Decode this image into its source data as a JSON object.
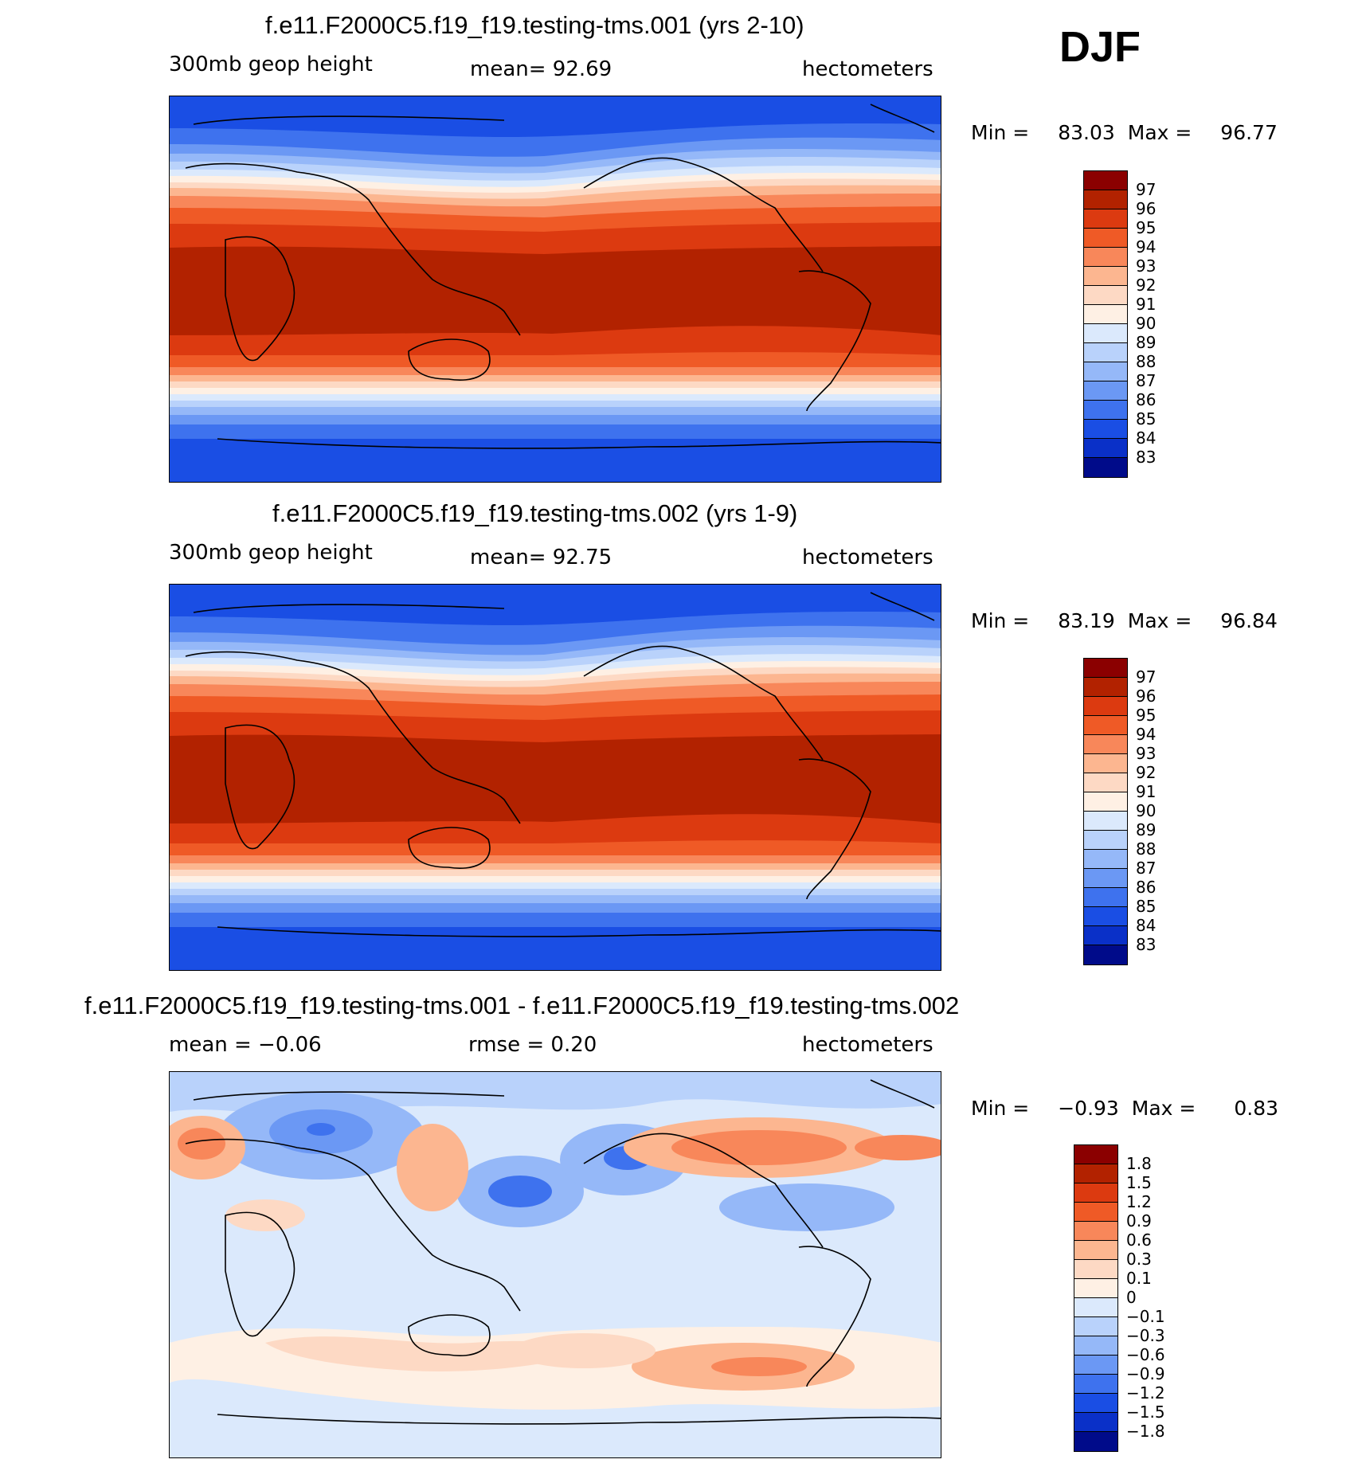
{
  "season": "DJF",
  "panels": [
    {
      "title": "f.e11.F2000C5.f19_f19.testing-tms.001 (yrs 2-10)",
      "left_label": "300mb  geop  height",
      "center_label": "mean=   92.69",
      "right_label": "hectometers",
      "min_label": "Min =",
      "min_value": "83.03",
      "max_label": "Max =",
      "max_value": "96.77",
      "legend": {
        "labels": [
          "97",
          "96",
          "95",
          "94",
          "93",
          "92",
          "91",
          "90",
          "89",
          "88",
          "87",
          "86",
          "85",
          "84",
          "83"
        ],
        "colors": [
          "#8b0000",
          "#b22200",
          "#dc3a10",
          "#ef5a26",
          "#f8875a",
          "#fcb690",
          "#fdd9c4",
          "#fef0e4",
          "#dbe9fc",
          "#b9d2fb",
          "#95b8f8",
          "#6b98f4",
          "#3e72ee",
          "#1a4ee4",
          "#0a30c8",
          "#000b8a"
        ]
      }
    },
    {
      "title": "f.e11.F2000C5.f19_f19.testing-tms.002 (yrs 1-9)",
      "left_label": "300mb  geop  height",
      "center_label": "mean=   92.75",
      "right_label": "hectometers",
      "min_label": "Min =",
      "min_value": "83.19",
      "max_label": "Max =",
      "max_value": "96.84",
      "legend": {
        "labels": [
          "97",
          "96",
          "95",
          "94",
          "93",
          "92",
          "91",
          "90",
          "89",
          "88",
          "87",
          "86",
          "85",
          "84",
          "83"
        ],
        "colors": [
          "#8b0000",
          "#b22200",
          "#dc3a10",
          "#ef5a26",
          "#f8875a",
          "#fcb690",
          "#fdd9c4",
          "#fef0e4",
          "#dbe9fc",
          "#b9d2fb",
          "#95b8f8",
          "#6b98f4",
          "#3e72ee",
          "#1a4ee4",
          "#0a30c8",
          "#000b8a"
        ]
      }
    },
    {
      "title": "f.e11.F2000C5.f19_f19.testing-tms.001 - f.e11.F2000C5.f19_f19.testing-tms.002",
      "left_label": "mean  =   −0.06",
      "center_label": "rmse  =     0.20",
      "right_label": "hectometers",
      "min_label": "Min =",
      "min_value": "−0.93",
      "max_label": "Max =",
      "max_value": "0.83",
      "legend": {
        "labels": [
          "1.8",
          "1.5",
          "1.2",
          "0.9",
          "0.6",
          "0.3",
          "0.1",
          "0",
          "−0.1",
          "−0.3",
          "−0.6",
          "−0.9",
          "−1.2",
          "−1.5",
          "−1.8"
        ],
        "colors": [
          "#8b0000",
          "#b22200",
          "#dc3a10",
          "#ef5a26",
          "#f8875a",
          "#fcb690",
          "#fdd9c4",
          "#fef0e4",
          "#dbe9fc",
          "#b9d2fb",
          "#95b8f8",
          "#6b98f4",
          "#3e72ee",
          "#1a4ee4",
          "#0a30c8",
          "#000b8a"
        ]
      }
    }
  ],
  "colors": {
    "deep_red": "#b22200",
    "deep_blue": "#1a4ee4",
    "coastline": "#000000"
  }
}
